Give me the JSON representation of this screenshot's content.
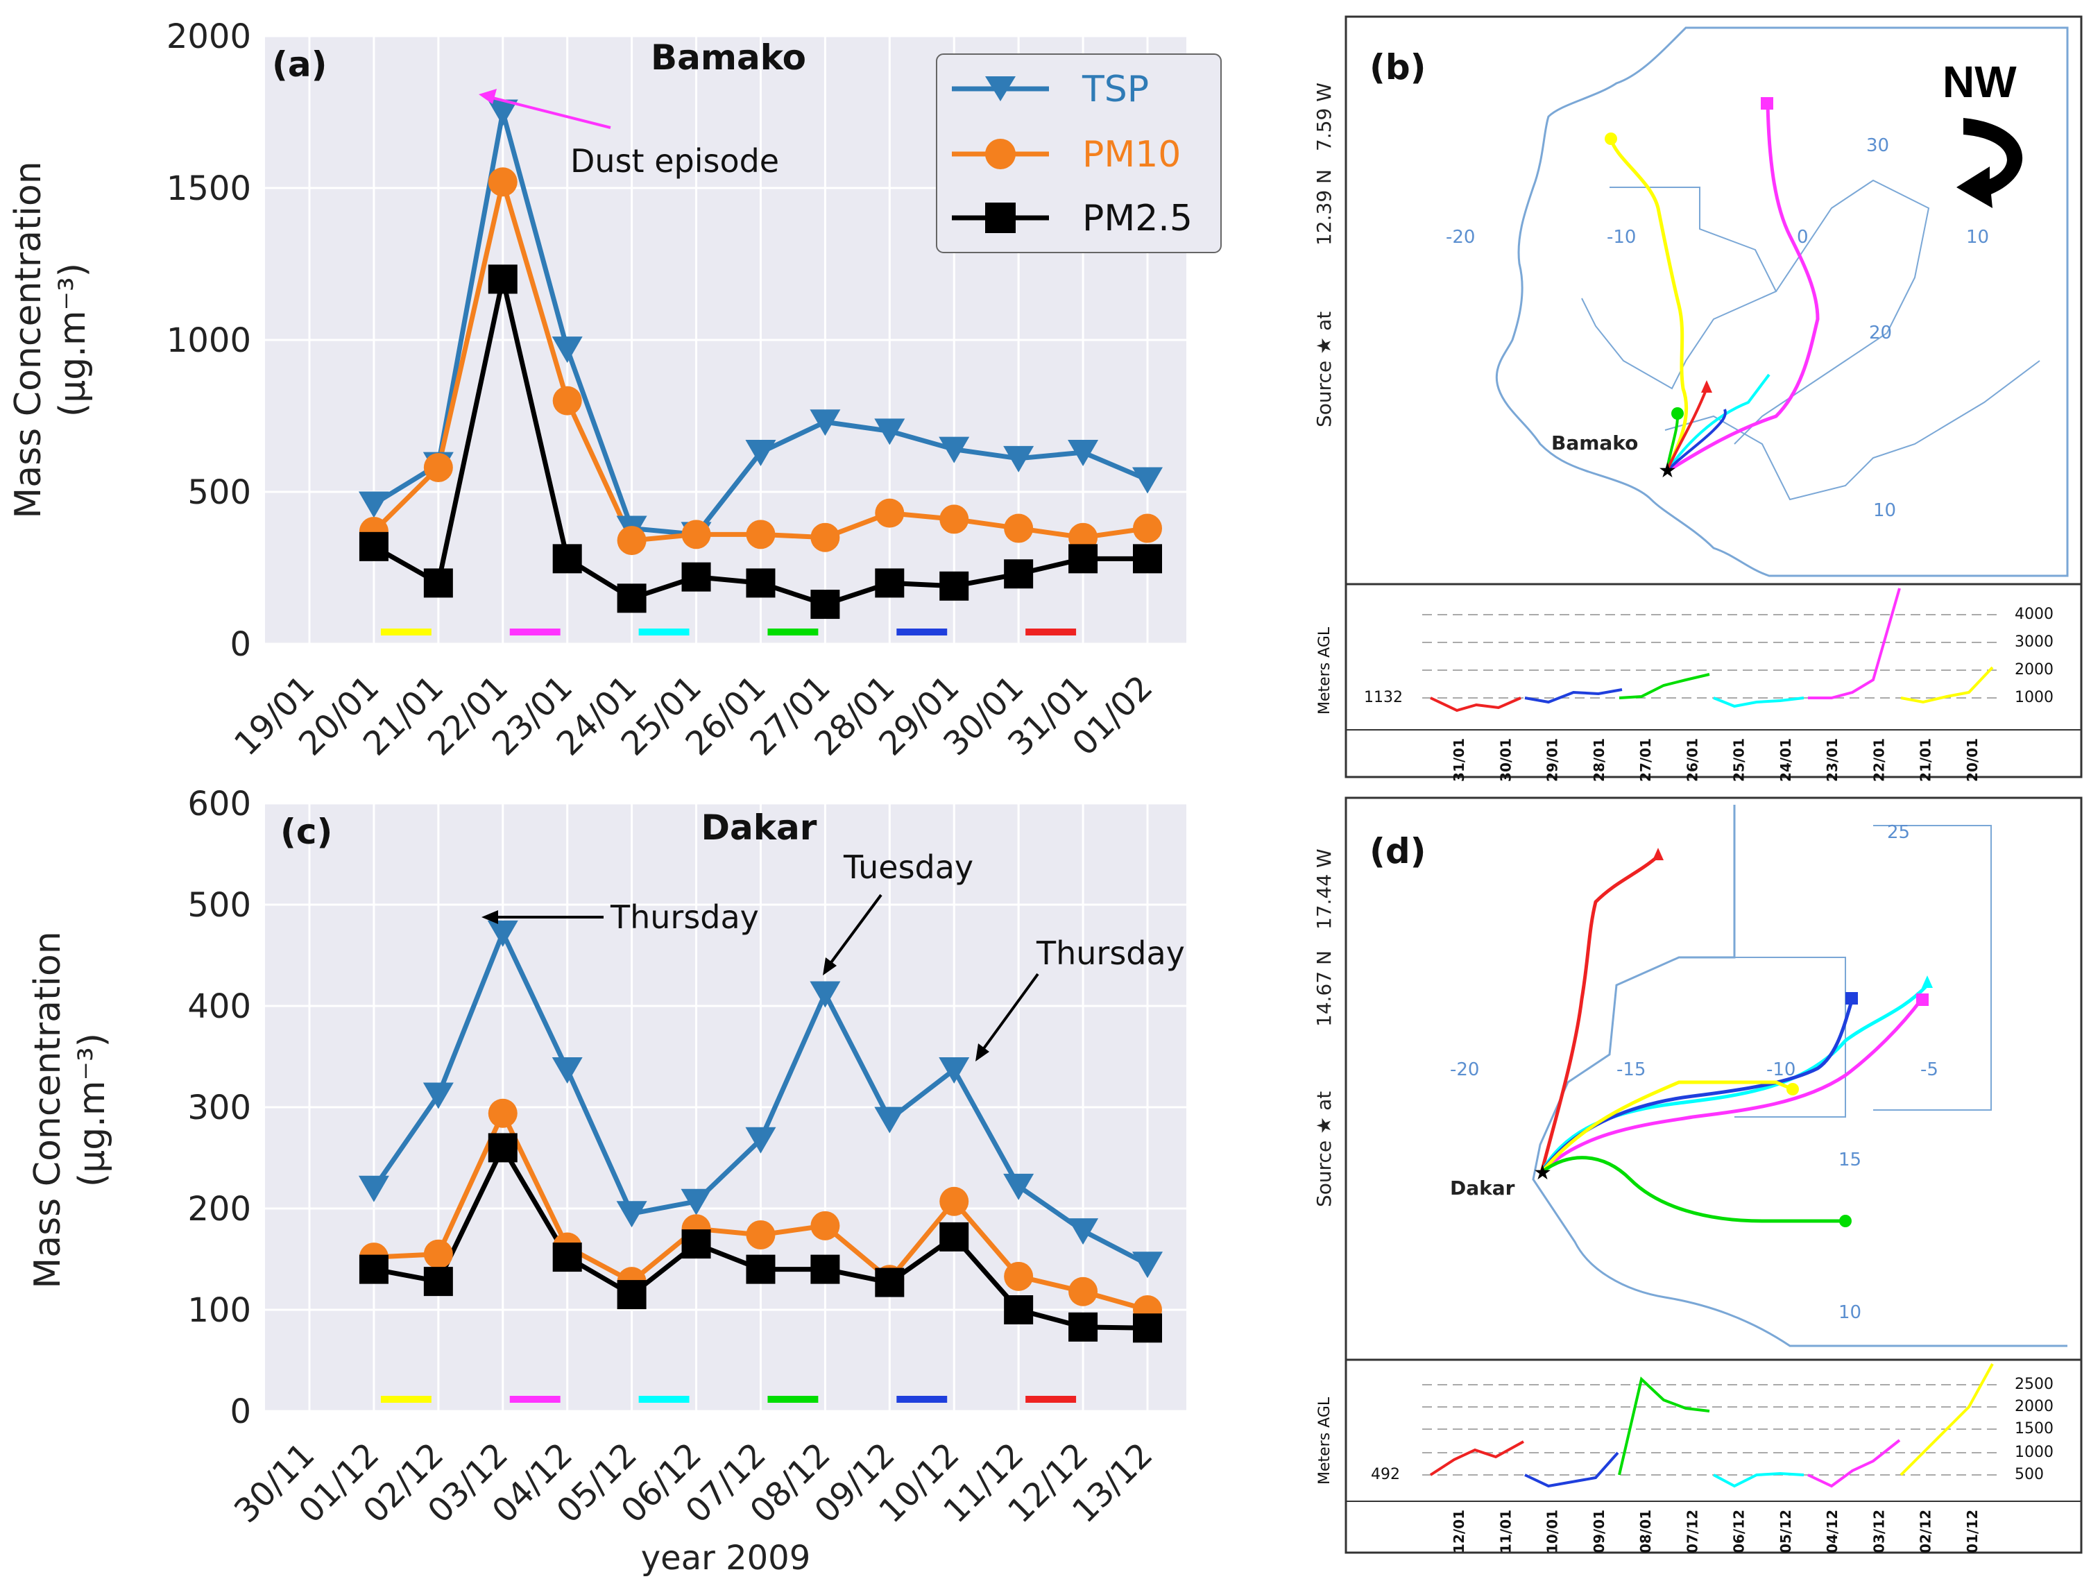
{
  "chart_data": [
    {
      "id": "a",
      "type": "line",
      "panel_label": "(a)",
      "title": "Bamako",
      "ylabel": "Mass Concentration",
      "ylabel_units": "(μg.m⁻³)",
      "xlabel": "",
      "ylim": [
        0,
        2000
      ],
      "yticks": [
        0,
        500,
        1000,
        1500,
        2000
      ],
      "categories": [
        "19/01",
        "20/01",
        "21/01",
        "22/01",
        "23/01",
        "24/01",
        "25/01",
        "26/01",
        "27/01",
        "28/01",
        "29/01",
        "30/01",
        "31/01",
        "01/02"
      ],
      "series": [
        {
          "name": "TSP",
          "color": "#2f7bb6",
          "marker": "triangle-down",
          "values": [
            null,
            460,
            590,
            1750,
            970,
            380,
            360,
            630,
            730,
            700,
            640,
            610,
            630,
            540
          ]
        },
        {
          "name": "PM10",
          "color": "#f4801e",
          "marker": "circle",
          "values": [
            null,
            370,
            580,
            1520,
            800,
            340,
            360,
            360,
            350,
            430,
            410,
            380,
            350,
            380
          ]
        },
        {
          "name": "PM2.5",
          "color": "#000000",
          "marker": "square",
          "values": [
            null,
            320,
            200,
            1200,
            280,
            150,
            220,
            200,
            130,
            200,
            190,
            230,
            280,
            280
          ]
        }
      ],
      "color_bars": [
        {
          "color": "#ffff00",
          "from": "20/01",
          "to": "21/01"
        },
        {
          "color": "#ff33ff",
          "from": "22/01",
          "to": "23/01"
        },
        {
          "color": "#00ffff",
          "from": "24/01",
          "to": "25/01"
        },
        {
          "color": "#00dd00",
          "from": "26/01",
          "to": "27/01"
        },
        {
          "color": "#1f3fdd",
          "from": "28/01",
          "to": "29/01"
        },
        {
          "color": "#ee2222",
          "from": "30/01",
          "to": "31/01"
        }
      ],
      "annotations": [
        {
          "text": "Dust episode",
          "color": "#ff33ff",
          "point": "22/01",
          "series": "TSP"
        }
      ]
    },
    {
      "id": "c",
      "type": "line",
      "panel_label": "(c)",
      "title": "Dakar",
      "ylabel": "Mass Concentration",
      "ylabel_units": "(μg.m⁻³)",
      "xlabel": "year 2009",
      "ylim": [
        0,
        600
      ],
      "yticks": [
        0,
        100,
        200,
        300,
        400,
        500,
        600
      ],
      "categories": [
        "30/11",
        "01/12",
        "02/12",
        "03/12",
        "04/12",
        "05/12",
        "06/12",
        "07/12",
        "08/12",
        "09/12",
        "10/12",
        "11/12",
        "12/12",
        "13/12"
      ],
      "series": [
        {
          "name": "TSP",
          "color": "#2f7bb6",
          "marker": "triangle-down",
          "values": [
            null,
            220,
            312,
            472,
            337,
            195,
            207,
            268,
            412,
            288,
            337,
            222,
            178,
            145
          ]
        },
        {
          "name": "PM10",
          "color": "#f4801e",
          "marker": "circle",
          "values": [
            null,
            152,
            155,
            294,
            162,
            128,
            180,
            174,
            183,
            130,
            207,
            133,
            118,
            100
          ]
        },
        {
          "name": "PM2.5",
          "color": "#000000",
          "marker": "square",
          "values": [
            null,
            140,
            128,
            260,
            152,
            115,
            165,
            140,
            140,
            127,
            172,
            100,
            83,
            82
          ]
        }
      ],
      "color_bars": [
        {
          "color": "#ffff00",
          "from": "01/12",
          "to": "02/12"
        },
        {
          "color": "#ff33ff",
          "from": "03/12",
          "to": "04/12"
        },
        {
          "color": "#00ffff",
          "from": "05/12",
          "to": "06/12"
        },
        {
          "color": "#00dd00",
          "from": "07/12",
          "to": "08/12"
        },
        {
          "color": "#1f3fdd",
          "from": "09/12",
          "to": "10/12"
        },
        {
          "color": "#ee2222",
          "from": "11/12",
          "to": "12/12"
        }
      ],
      "annotations": [
        {
          "text": "Thursday",
          "point": "03/12",
          "series": "TSP"
        },
        {
          "text": "Tuesday",
          "point": "08/12",
          "series": "TSP"
        },
        {
          "text": "Thursday",
          "point": "10/12",
          "series": "TSP"
        }
      ]
    }
  ],
  "legend": {
    "items": [
      {
        "label": "TSP",
        "color": "#2f7bb6"
      },
      {
        "label": "PM10",
        "color": "#f4801e"
      },
      {
        "label": "PM2.5",
        "color": "#000000"
      }
    ]
  },
  "map_b": {
    "panel_label": "(b)",
    "city": "Bamako",
    "wind": "NW",
    "source_label": "Source ★ at",
    "lat": "12.39 N",
    "lon": "7.59 W",
    "grid_labels": [
      "-20",
      "-10",
      "0",
      "10",
      "30",
      "20",
      "10"
    ],
    "height_ylabel": "Meters AGL",
    "start_height": "1132",
    "height_ticks": [
      "4000",
      "3000",
      "2000",
      "1000"
    ],
    "date_labels": [
      "31/01",
      "30/01",
      "29/01",
      "28/01",
      "27/01",
      "26/01",
      "25/01",
      "24/01",
      "23/01",
      "22/01",
      "21/01",
      "20/01"
    ]
  },
  "map_d": {
    "panel_label": "(d)",
    "city": "Dakar",
    "source_label": "Source ★ at",
    "lat": "14.67 N",
    "lon": "17.44 W",
    "grid_labels": [
      "25",
      "-20",
      "-15",
      "-10",
      "-5",
      "15",
      "10"
    ],
    "height_ylabel": "Meters AGL",
    "start_height": "492",
    "height_ticks": [
      "2500",
      "2000",
      "1500",
      "1000",
      "500"
    ],
    "date_labels": [
      "12/01",
      "11/01",
      "10/01",
      "09/01",
      "08/01",
      "07/12",
      "06/12",
      "05/12",
      "04/12",
      "03/12",
      "02/12",
      "01/12"
    ]
  }
}
